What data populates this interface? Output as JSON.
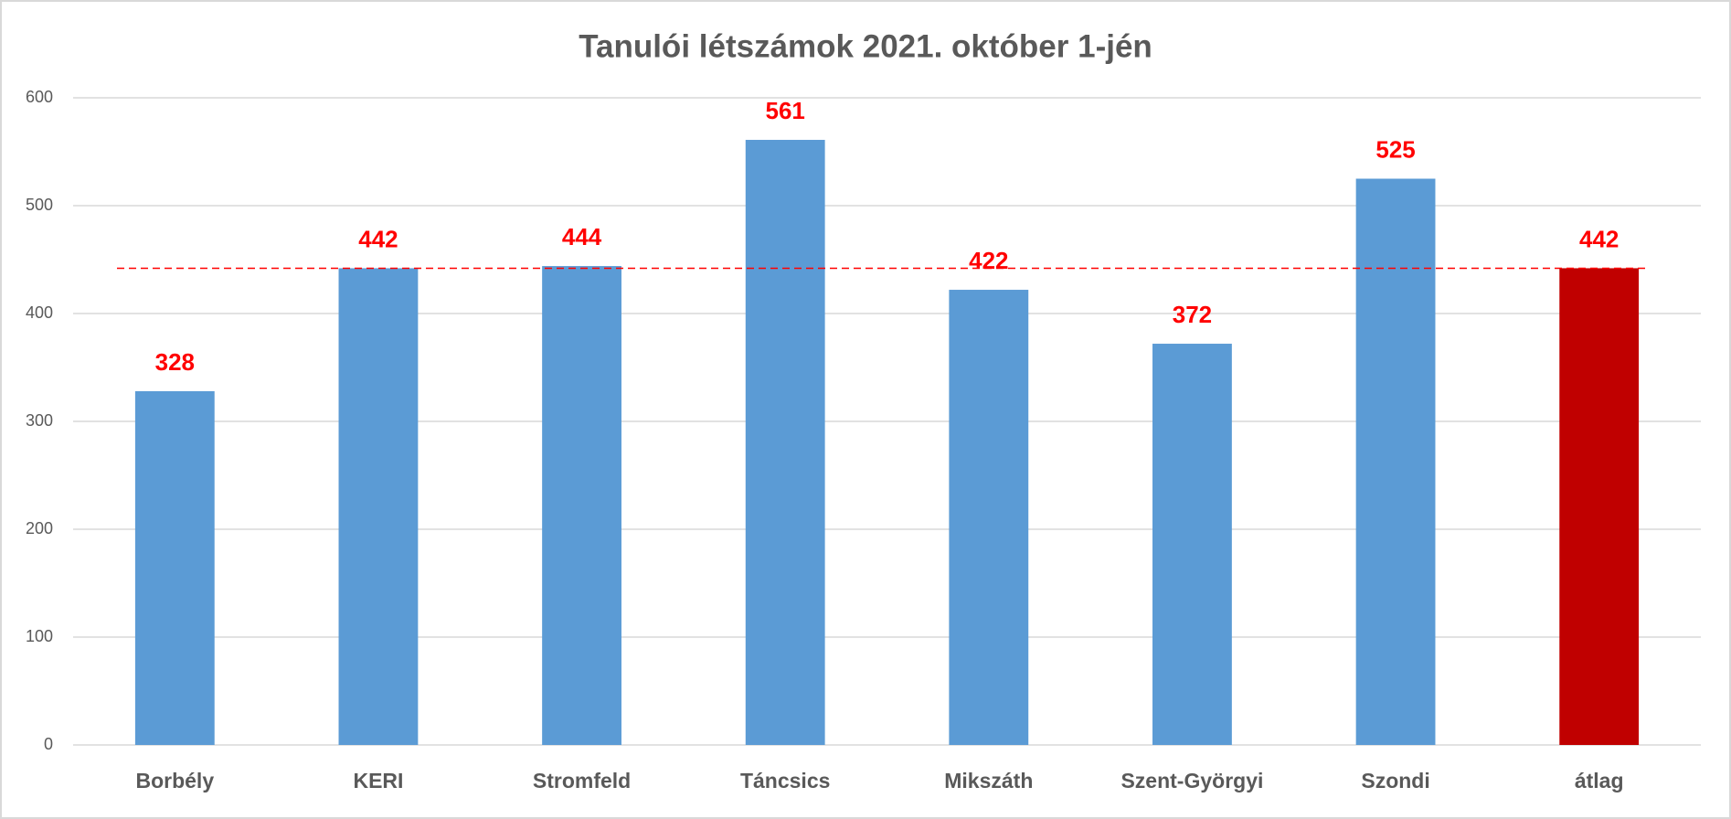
{
  "chart_data": {
    "type": "bar",
    "title": "Tanulói létszámok 2021. október 1-jén",
    "categories": [
      "Borbély",
      "KERI",
      "Stromfeld",
      "Táncsics",
      "Mikszáth",
      "Szent-Györgyi",
      "Szondi",
      "átlag"
    ],
    "values": [
      328,
      442,
      444,
      561,
      422,
      372,
      525,
      442
    ],
    "colors": [
      "#5b9bd5",
      "#5b9bd5",
      "#5b9bd5",
      "#5b9bd5",
      "#5b9bd5",
      "#5b9bd5",
      "#5b9bd5",
      "#c00000"
    ],
    "label_color": "#ff0000",
    "ylim": [
      0,
      600
    ],
    "yticks": [
      0,
      100,
      200,
      300,
      400,
      500,
      600
    ],
    "grid": true
  }
}
